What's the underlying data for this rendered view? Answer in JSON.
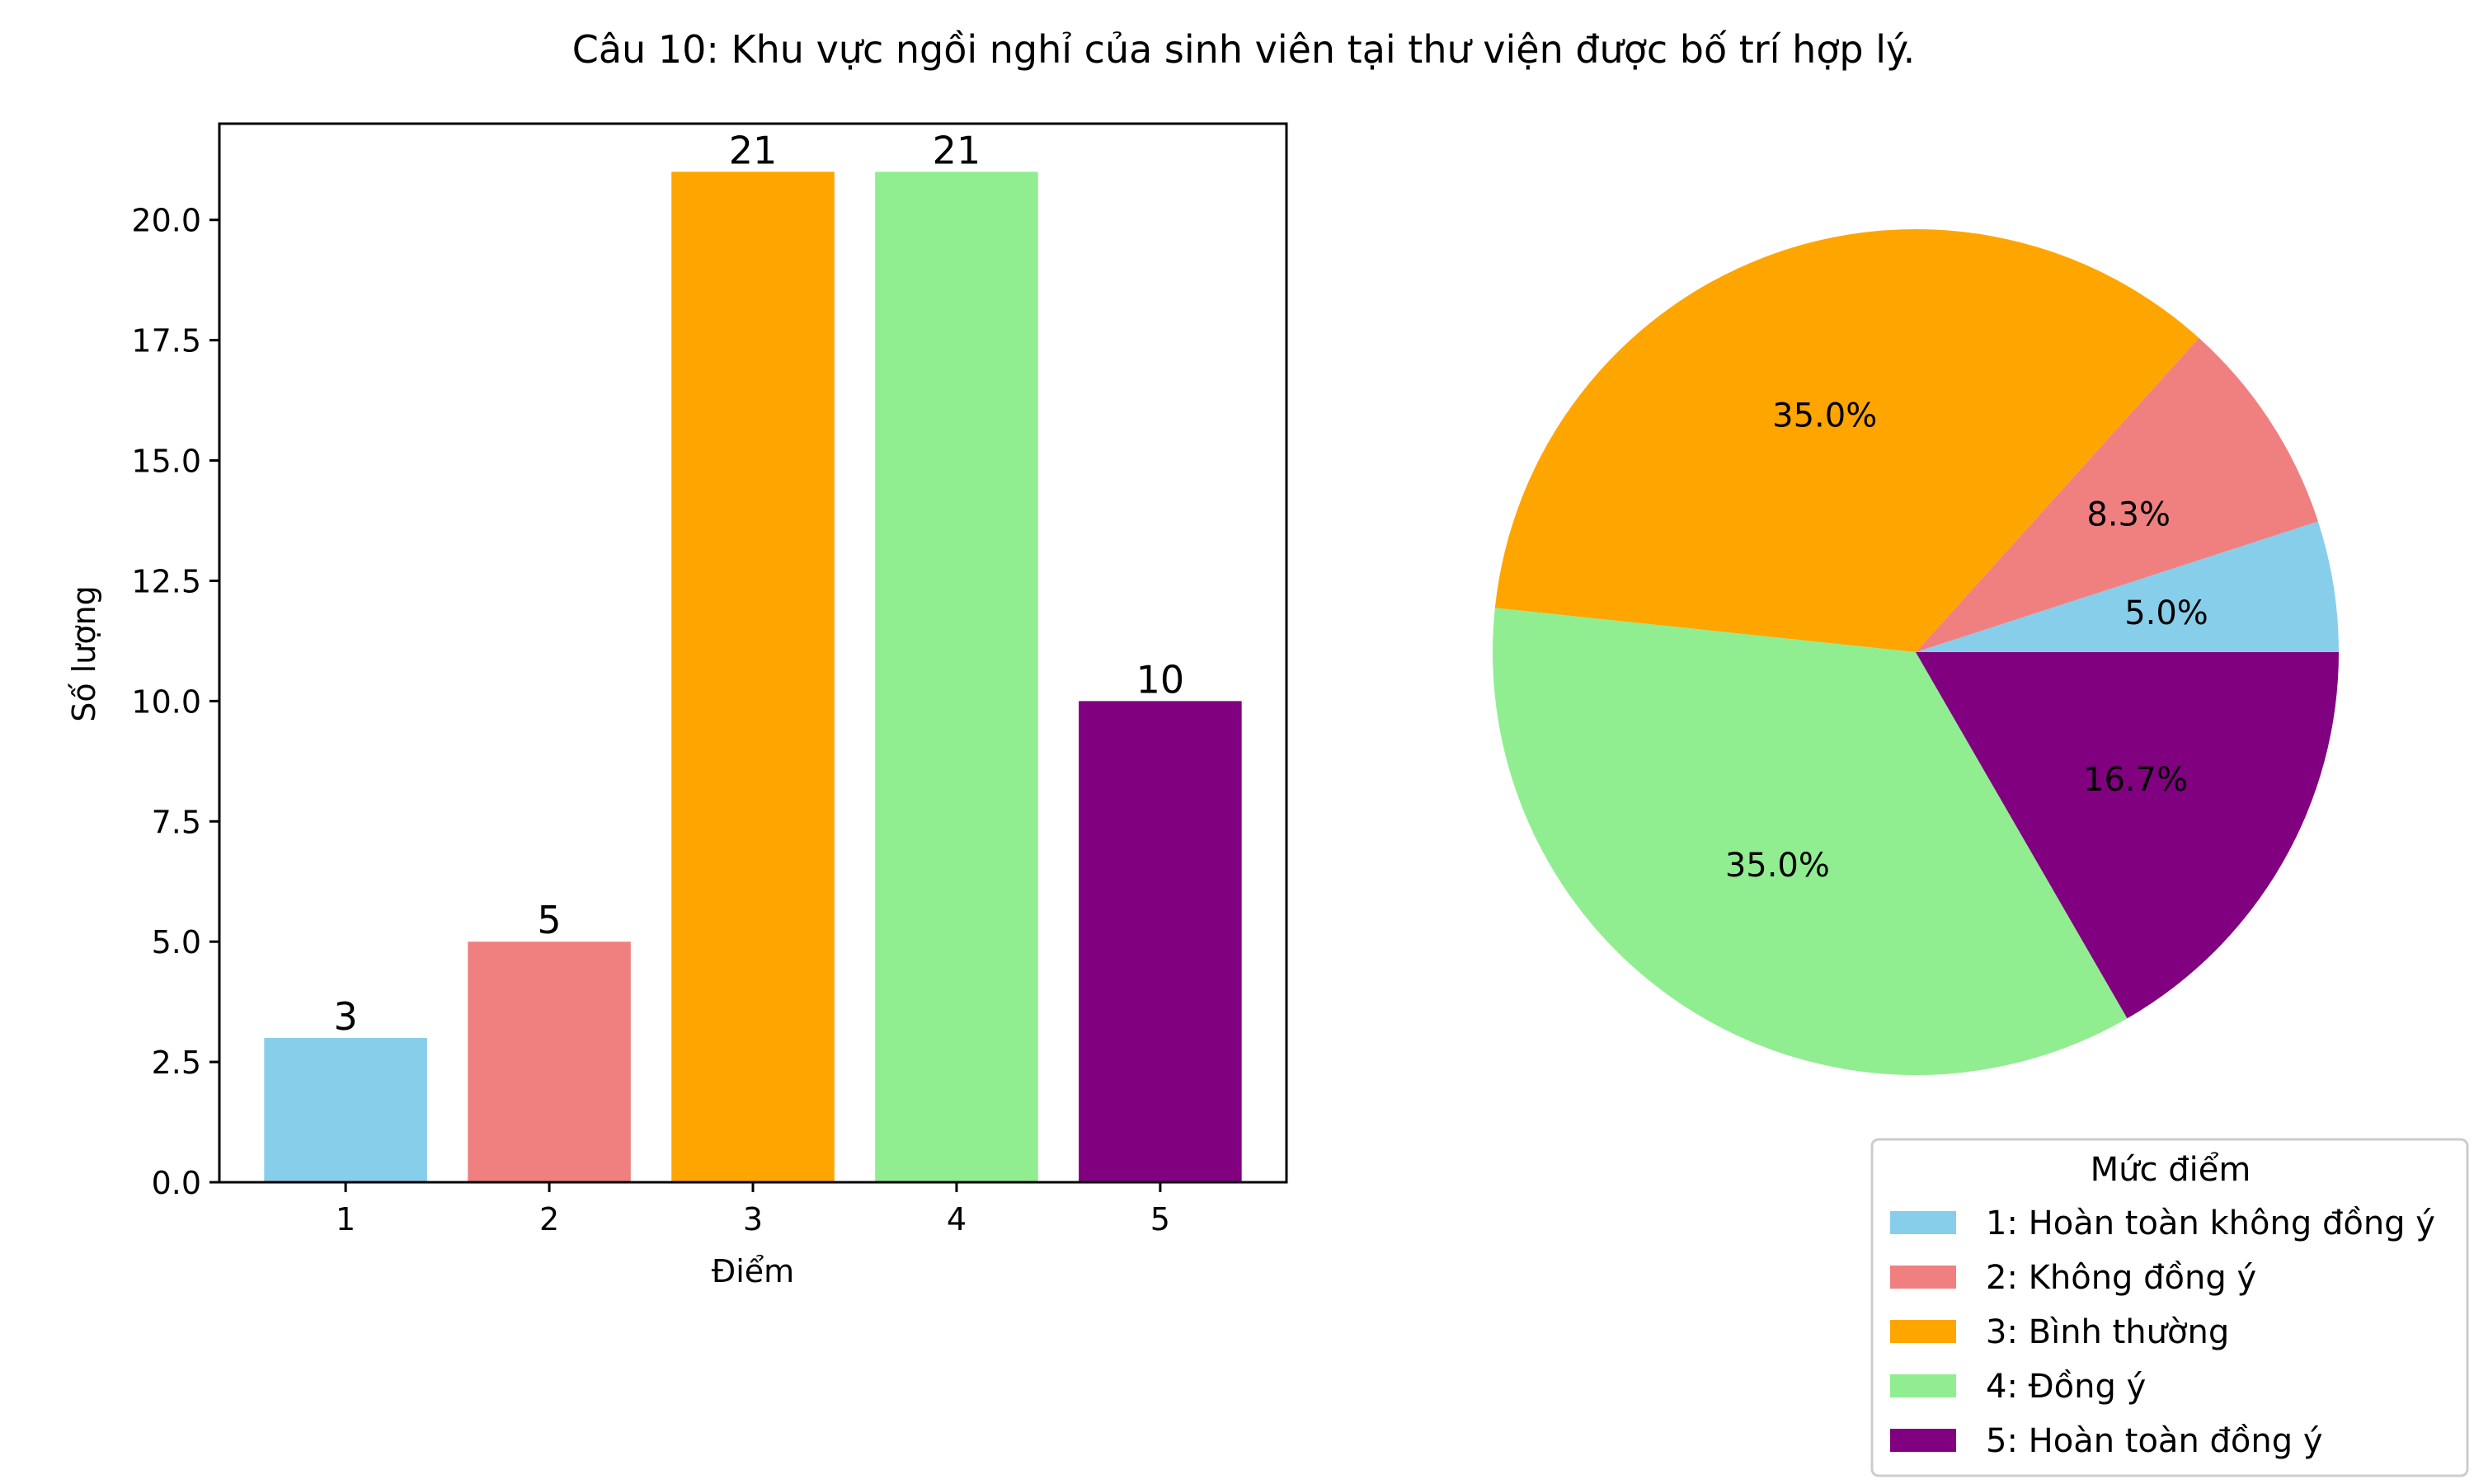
{
  "title": "Câu 10: Khu vực ngồi nghỉ của sinh viên tại thư viện được bố trí hợp lý.",
  "chart_data": [
    {
      "type": "bar",
      "categories": [
        "1",
        "2",
        "3",
        "4",
        "5"
      ],
      "values": [
        3,
        5,
        21,
        21,
        10
      ],
      "colors": [
        "#87ceeb",
        "#f08080",
        "#ffa500",
        "#90ee90",
        "#800080"
      ],
      "xlabel": "Điểm",
      "ylabel": "Số lượng",
      "ylim": [
        0,
        22
      ],
      "yticks": [
        "0.0",
        "2.5",
        "5.0",
        "7.5",
        "10.0",
        "12.5",
        "15.0",
        "17.5",
        "20.0"
      ],
      "data_labels": [
        "3",
        "5",
        "21",
        "21",
        "10"
      ],
      "grid": false
    },
    {
      "type": "pie",
      "values": [
        3,
        5,
        21,
        21,
        10
      ],
      "percent_labels": [
        "5.0%",
        "8.3%",
        "35.0%",
        "35.0%",
        "16.7%"
      ],
      "colors": [
        "#87ceeb",
        "#f08080",
        "#ffa500",
        "#90ee90",
        "#800080"
      ],
      "start_angle_deg": 0,
      "direction": "counterclockwise",
      "legend": {
        "title": "Mức điểm",
        "placement": "bottom-right",
        "entries": [
          "1: Hoàn toàn không đồng ý",
          "2: Không đồng ý",
          "3: Bình thường",
          "4: Đồng ý",
          "5: Hoàn toàn đồng ý"
        ]
      }
    }
  ]
}
